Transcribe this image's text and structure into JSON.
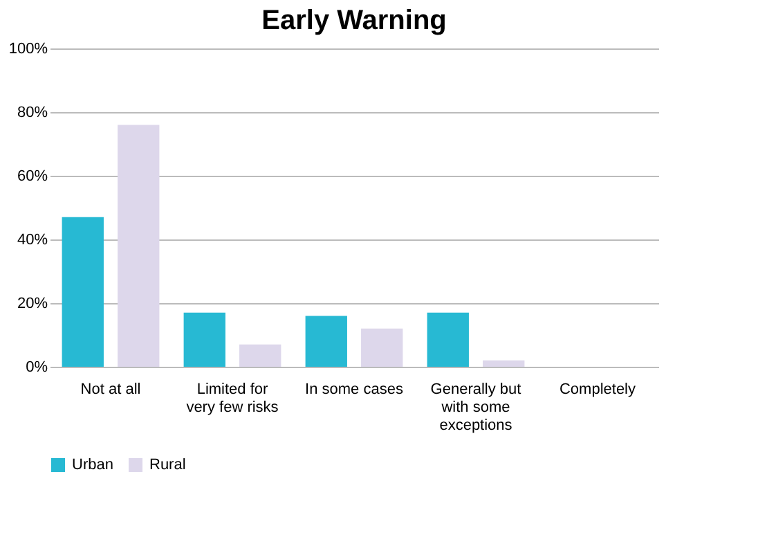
{
  "chart_data": {
    "type": "bar",
    "title": "Early Warning",
    "categories": [
      "Not at all",
      "Limited for very few risks",
      "In some cases",
      "Generally but with some exceptions",
      "Completely"
    ],
    "series": [
      {
        "name": "Urban",
        "color": "#27b9d3",
        "values": [
          47,
          17,
          16,
          17,
          0
        ]
      },
      {
        "name": "Rural",
        "color": "#ddd7eb",
        "values": [
          76,
          7,
          12,
          2,
          0
        ]
      }
    ],
    "ylim": [
      0,
      100
    ],
    "yticks": [
      {
        "value": 0,
        "label": "0%"
      },
      {
        "value": 20,
        "label": "20%"
      },
      {
        "value": 40,
        "label": "40%"
      },
      {
        "value": 60,
        "label": "60%"
      },
      {
        "value": 80,
        "label": "80%"
      },
      {
        "value": 100,
        "label": "100%"
      }
    ],
    "grid": "y",
    "legend": "bottom"
  }
}
